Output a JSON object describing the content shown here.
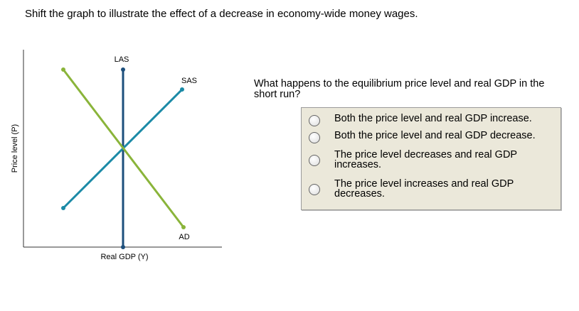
{
  "instruction": "Shift the graph to illustrate the effect of a decrease in economy-wide money wages.",
  "graph": {
    "y_axis_label": "Price level (P)",
    "x_axis_label": "Real GDP (Y)",
    "curves": [
      "LAS",
      "SAS",
      "AD"
    ]
  },
  "question": {
    "text": "What happens to the equilibrium price level and real GDP in the short run?",
    "options": [
      "Both the price level and real GDP increase.",
      "Both the price level and real GDP decrease.",
      "The price level decreases and real GDP increases.",
      "The price level increases and real GDP decreases."
    ]
  }
}
